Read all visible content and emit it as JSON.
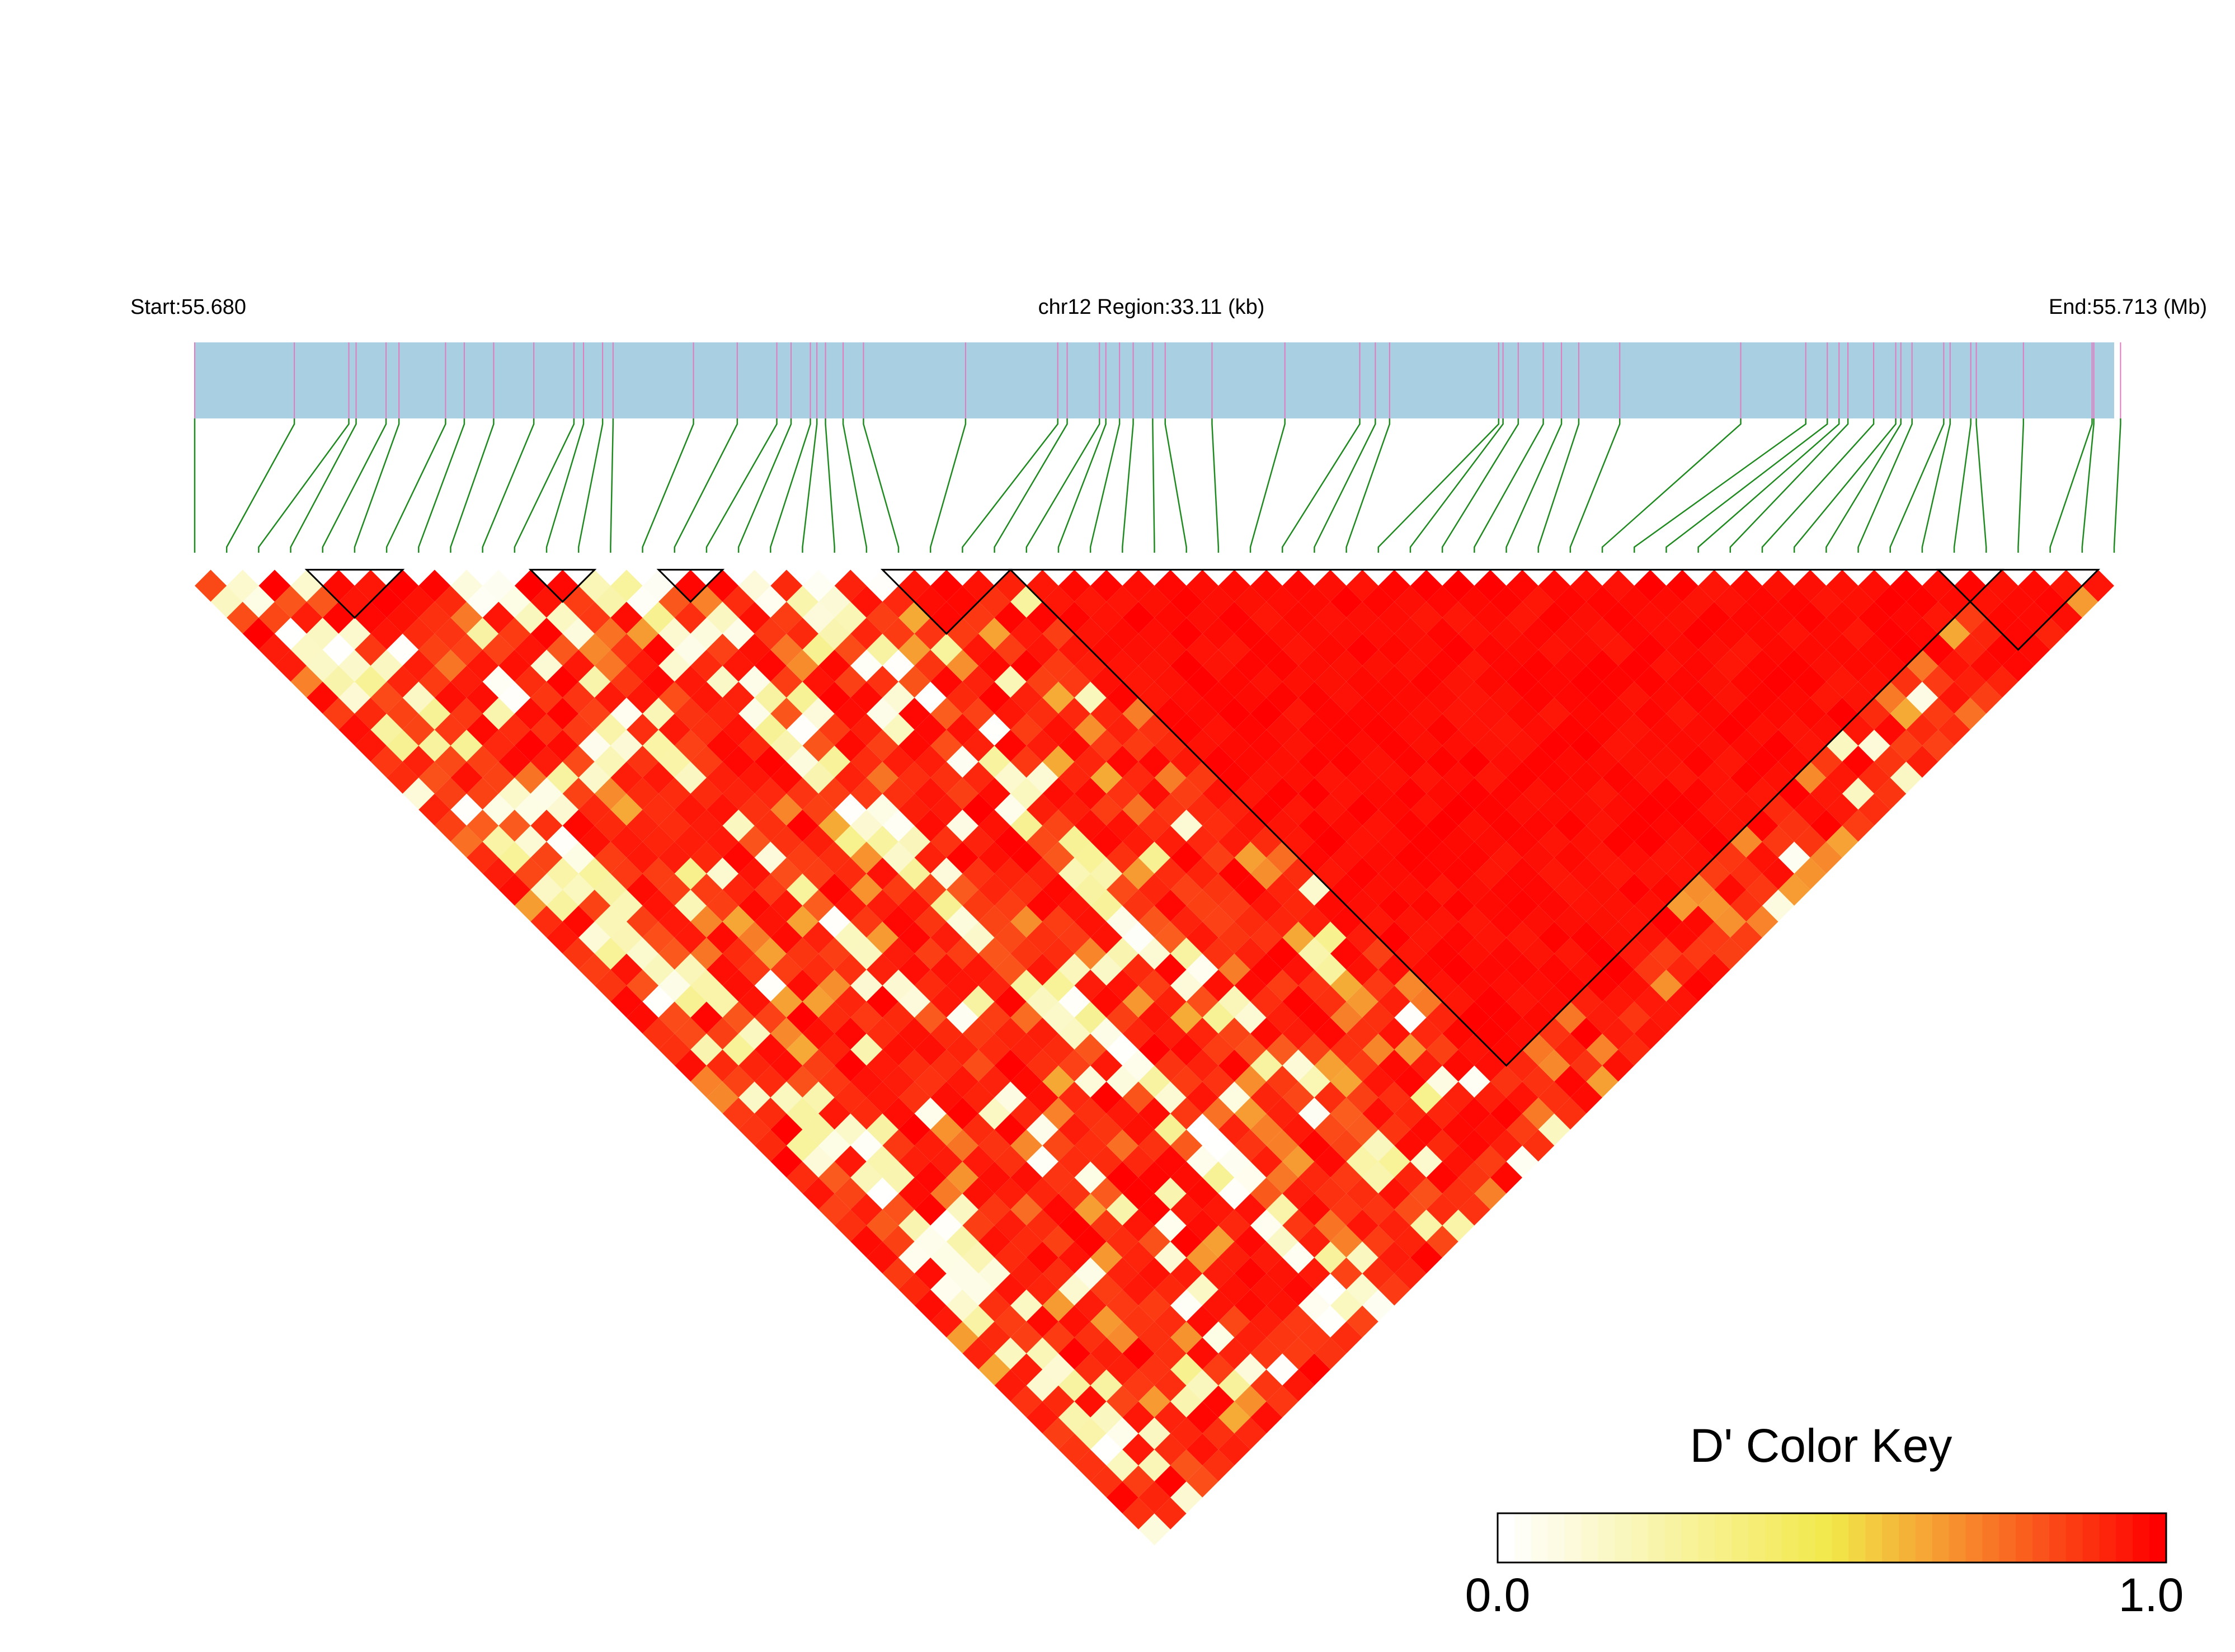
{
  "chart_data": {
    "type": "heatmap",
    "subtype": "ld-triangle",
    "header": {
      "start_label": "Start:55.680",
      "region_label": "chr12 Region:33.11 (kb)",
      "end_label": "End:55.713 (Mb)"
    },
    "region": {
      "chromosome": "chr12",
      "start_mb": 55.68,
      "end_mb": 55.713,
      "length_kb": 33.11
    },
    "snp_count": 61,
    "snp_positions_mb": [
      55.68,
      55.681713,
      55.68265,
      55.682775,
      55.68329,
      55.683512,
      55.684313,
      55.684635,
      55.68514,
      55.68583,
      55.68652,
      55.686685,
      55.687013,
      55.687193,
      55.688575,
      55.689328,
      55.690008,
      55.690253,
      55.690585,
      55.690697,
      55.690845,
      55.691148,
      55.691498,
      55.693253,
      55.694838,
      55.695,
      55.695555,
      55.695665,
      55.6959,
      55.696135,
      55.69647,
      55.696685,
      55.69749,
      55.698743,
      55.70003,
      55.700298,
      55.700543,
      55.702418,
      55.702493,
      55.702755,
      55.703185,
      55.703498,
      55.703795,
      55.7045,
      55.70658,
      55.707698,
      55.708068,
      55.70827,
      55.708423,
      55.708865,
      55.709245,
      55.709333,
      55.709525,
      55.71007,
      55.71018,
      55.710535,
      55.71063,
      55.71144,
      55.71262,
      55.71265,
      55.71311
    ],
    "snp_marker_color": "#e07bc0",
    "haplotype_blocks": [
      {
        "first_snp": 4,
        "last_snp": 6
      },
      {
        "first_snp": 11,
        "last_snp": 12
      },
      {
        "first_snp": 15,
        "last_snp": 16
      },
      {
        "first_snp": 22,
        "last_snp": 25
      },
      {
        "first_snp": 26,
        "last_snp": 56
      },
      {
        "first_snp": 55,
        "last_snp": 59
      }
    ],
    "ld_matrix_model": {
      "note": "D' values between SNP pairs, rendered as a red/yellow/white triangle",
      "seed": 12345,
      "value_range": [
        0.0,
        1.0
      ]
    },
    "color_key": {
      "title": "D' Color Key",
      "min_label": "0.0",
      "max_label": "1.0",
      "steps": 40,
      "colors": [
        "#ffffff",
        "#f2e84a",
        "#ff0000"
      ]
    },
    "colors": {
      "track_fill": "#a9cfe3",
      "connector_line": "#1f8a1f",
      "block_outline": "#000000"
    }
  }
}
